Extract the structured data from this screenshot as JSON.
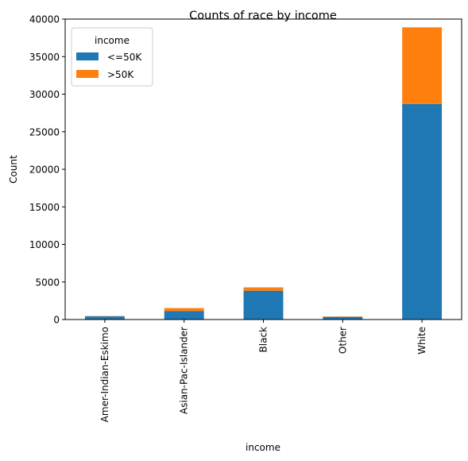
{
  "chart_data": {
    "type": "bar",
    "stacked": true,
    "title": "Counts of race by income",
    "xlabel": "income",
    "ylabel": "Count",
    "categories": [
      "Amer-Indian-Eskimo",
      "Asian-Pac-Islander",
      "Black",
      "Other",
      "White"
    ],
    "series": [
      {
        "name": "<=50K",
        "color": "#1f77b4",
        "values": [
          415,
          1110,
          3840,
          356,
          28700
        ]
      },
      {
        "name": ">50K",
        "color": "#ff7f0e",
        "values": [
          55,
          410,
          440,
          50,
          10200
        ]
      }
    ],
    "ylim": [
      0,
      40000
    ],
    "yticks": [
      0,
      5000,
      10000,
      15000,
      20000,
      25000,
      30000,
      35000,
      40000
    ],
    "legend": {
      "title": "income",
      "position": "top-left"
    },
    "grid": false
  }
}
